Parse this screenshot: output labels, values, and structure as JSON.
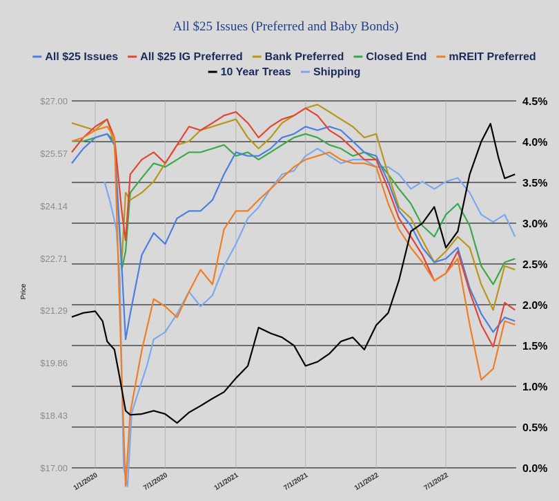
{
  "chart_data": {
    "type": "line",
    "title": "All $25 Issues (Preferred and Baby Bonds)",
    "ylabel": "Price",
    "y2label": "",
    "ylim": [
      17.0,
      27.0
    ],
    "y2lim": [
      0.0,
      4.5
    ],
    "yticks": [
      "$27.00",
      "$25.57",
      "$24.14",
      "$22.71",
      "$21.29",
      "$19.86",
      "$18.43",
      "$17.00"
    ],
    "y2ticks": [
      "4.5%",
      "4.0%",
      "3.5%",
      "3.0%",
      "2.5%",
      "2.0%",
      "1.5%",
      "1.0%",
      "0.5%",
      "0.0%"
    ],
    "xticks": [
      "1/1/2020",
      "7/1/2020",
      "1/1/2021",
      "7/1/2021",
      "1/1/2022",
      "7/1/2022"
    ],
    "legend_position": "top",
    "grid": "horizontal at right-axis ticks; vertical at date ticks",
    "series": [
      {
        "name": "All $25 Issues",
        "color": "#4a7fe0",
        "axis": "left",
        "x": [
          "2019-11-01",
          "2019-12-01",
          "2020-01-01",
          "2020-02-01",
          "2020-02-20",
          "2020-03-10",
          "2020-03-20",
          "2020-04-01",
          "2020-05-01",
          "2020-06-01",
          "2020-07-01",
          "2020-08-01",
          "2020-09-01",
          "2020-10-01",
          "2020-11-01",
          "2020-12-01",
          "2021-01-01",
          "2021-02-01",
          "2021-03-01",
          "2021-04-01",
          "2021-05-01",
          "2021-06-01",
          "2021-07-01",
          "2021-08-01",
          "2021-09-01",
          "2021-10-01",
          "2021-11-01",
          "2021-12-01",
          "2022-01-01",
          "2022-02-01",
          "2022-03-01",
          "2022-04-01",
          "2022-05-01",
          "2022-06-01",
          "2022-07-01",
          "2022-08-01",
          "2022-09-01",
          "2022-10-01",
          "2022-11-01",
          "2022-12-01",
          "2022-12-28"
        ],
        "y": [
          25.3,
          25.7,
          26.0,
          26.1,
          25.8,
          22.5,
          20.5,
          21.2,
          22.8,
          23.4,
          23.1,
          23.8,
          24.0,
          24.0,
          24.3,
          25.0,
          25.6,
          25.5,
          25.5,
          25.7,
          26.0,
          26.1,
          26.3,
          26.2,
          26.3,
          26.2,
          25.9,
          25.6,
          25.5,
          24.8,
          24.0,
          23.6,
          23.0,
          22.6,
          22.7,
          23.0,
          21.9,
          21.2,
          20.7,
          21.1,
          21.0
        ]
      },
      {
        "name": "All $25 IG Preferred",
        "color": "#e04535",
        "axis": "left",
        "x": [
          "2019-11-01",
          "2019-12-01",
          "2020-01-01",
          "2020-02-01",
          "2020-02-20",
          "2020-03-10",
          "2020-03-20",
          "2020-04-01",
          "2020-05-01",
          "2020-06-01",
          "2020-07-01",
          "2020-08-01",
          "2020-09-01",
          "2020-10-01",
          "2020-11-01",
          "2020-12-01",
          "2021-01-01",
          "2021-02-01",
          "2021-03-01",
          "2021-04-01",
          "2021-05-01",
          "2021-06-01",
          "2021-07-01",
          "2021-08-01",
          "2021-09-01",
          "2021-10-01",
          "2021-11-01",
          "2021-12-01",
          "2022-01-01",
          "2022-02-01",
          "2022-03-01",
          "2022-04-01",
          "2022-05-01",
          "2022-06-01",
          "2022-07-01",
          "2022-08-01",
          "2022-09-01",
          "2022-10-01",
          "2022-11-01",
          "2022-12-01",
          "2022-12-28"
        ],
        "y": [
          25.6,
          26.0,
          26.3,
          26.5,
          26.0,
          24.0,
          23.2,
          25.0,
          25.4,
          25.6,
          25.3,
          25.8,
          26.3,
          26.2,
          26.4,
          26.6,
          26.7,
          26.4,
          26.0,
          26.3,
          26.5,
          26.6,
          26.8,
          26.6,
          26.2,
          26.0,
          25.7,
          25.4,
          25.4,
          24.6,
          23.8,
          23.3,
          22.8,
          22.1,
          22.3,
          22.9,
          21.8,
          20.9,
          20.3,
          21.5,
          21.3
        ]
      },
      {
        "name": "Bank Preferred",
        "color": "#b8961a",
        "axis": "left",
        "x": [
          "2019-11-01",
          "2019-12-01",
          "2020-01-01",
          "2020-02-01",
          "2020-02-20",
          "2020-03-10",
          "2020-03-20",
          "2020-04-01",
          "2020-05-01",
          "2020-06-01",
          "2020-07-01",
          "2020-08-01",
          "2020-09-01",
          "2020-10-01",
          "2020-11-01",
          "2020-12-01",
          "2021-01-01",
          "2021-02-01",
          "2021-03-01",
          "2021-04-01",
          "2021-05-01",
          "2021-06-01",
          "2021-07-01",
          "2021-08-01",
          "2021-09-01",
          "2021-10-01",
          "2021-11-01",
          "2021-12-01",
          "2022-01-01",
          "2022-02-01",
          "2022-03-01",
          "2022-04-01",
          "2022-05-01",
          "2022-06-01",
          "2022-07-01",
          "2022-08-01",
          "2022-09-01",
          "2022-10-01",
          "2022-11-01",
          "2022-12-01",
          "2022-12-28"
        ],
        "y": [
          26.4,
          26.3,
          26.2,
          26.5,
          25.8,
          22.6,
          24.5,
          24.3,
          24.5,
          24.8,
          25.3,
          25.8,
          25.9,
          26.2,
          26.3,
          26.4,
          26.5,
          26.0,
          25.7,
          26.0,
          26.4,
          26.6,
          26.8,
          26.9,
          26.7,
          26.5,
          26.3,
          26.0,
          26.1,
          25.0,
          24.1,
          23.8,
          23.2,
          22.6,
          22.9,
          23.3,
          23.0,
          22.0,
          21.3,
          22.5,
          22.4
        ]
      },
      {
        "name": "Closed End",
        "color": "#3aa84a",
        "axis": "left",
        "x": [
          "2019-11-01",
          "2019-12-01",
          "2020-01-01",
          "2020-02-01",
          "2020-02-20",
          "2020-03-10",
          "2020-03-20",
          "2020-04-01",
          "2020-05-01",
          "2020-06-01",
          "2020-07-01",
          "2020-08-01",
          "2020-09-01",
          "2020-10-01",
          "2020-11-01",
          "2020-12-01",
          "2021-01-01",
          "2021-02-01",
          "2021-03-01",
          "2021-04-01",
          "2021-05-01",
          "2021-06-01",
          "2021-07-01",
          "2021-08-01",
          "2021-09-01",
          "2021-10-01",
          "2021-11-01",
          "2021-12-01",
          "2022-01-01",
          "2022-02-01",
          "2022-03-01",
          "2022-04-01",
          "2022-05-01",
          "2022-06-01",
          "2022-07-01",
          "2022-08-01",
          "2022-09-01",
          "2022-10-01",
          "2022-11-01",
          "2022-12-01",
          "2022-12-28"
        ],
        "y": [
          25.9,
          25.9,
          26.0,
          26.1,
          25.9,
          22.4,
          22.9,
          24.5,
          24.9,
          25.3,
          25.2,
          25.4,
          25.6,
          25.6,
          25.7,
          25.8,
          25.5,
          25.6,
          25.4,
          25.6,
          25.8,
          26.0,
          26.1,
          26.0,
          25.8,
          25.7,
          25.5,
          25.6,
          25.4,
          25.0,
          24.6,
          24.2,
          23.6,
          23.3,
          23.9,
          24.2,
          23.6,
          22.5,
          22.0,
          22.6,
          22.7
        ]
      },
      {
        "name": "mREIT Preferred",
        "color": "#f07d22",
        "axis": "left",
        "x": [
          "2019-11-01",
          "2019-12-01",
          "2020-01-01",
          "2020-02-01",
          "2020-02-20",
          "2020-03-10",
          "2020-03-20",
          "2020-04-01",
          "2020-05-01",
          "2020-06-01",
          "2020-07-01",
          "2020-08-01",
          "2020-09-01",
          "2020-10-01",
          "2020-11-01",
          "2020-12-01",
          "2021-01-01",
          "2021-02-01",
          "2021-03-01",
          "2021-04-01",
          "2021-05-01",
          "2021-06-01",
          "2021-07-01",
          "2021-08-01",
          "2021-09-01",
          "2021-10-01",
          "2021-11-01",
          "2021-12-01",
          "2022-01-01",
          "2022-02-01",
          "2022-03-01",
          "2022-04-01",
          "2022-05-01",
          "2022-06-01",
          "2022-07-01",
          "2022-08-01",
          "2022-09-01",
          "2022-10-01",
          "2022-11-01",
          "2022-12-01",
          "2022-12-28"
        ],
        "y": [
          25.9,
          26.0,
          26.2,
          26.3,
          26.0,
          19.5,
          16.5,
          18.5,
          20.2,
          21.6,
          21.4,
          21.1,
          21.8,
          22.4,
          22.0,
          23.5,
          24.0,
          24.0,
          24.3,
          24.6,
          24.9,
          25.2,
          25.4,
          25.5,
          25.6,
          25.4,
          25.3,
          25.3,
          25.2,
          24.2,
          23.5,
          23.0,
          22.6,
          22.1,
          22.3,
          22.7,
          20.9,
          19.4,
          19.7,
          21.0,
          20.9
        ]
      },
      {
        "name": "10 Year Treas",
        "color": "#000000",
        "axis": "right",
        "x": [
          "2019-11-01",
          "2019-12-01",
          "2020-01-01",
          "2020-01-20",
          "2020-02-01",
          "2020-02-20",
          "2020-03-05",
          "2020-03-20",
          "2020-04-01",
          "2020-05-01",
          "2020-06-01",
          "2020-07-01",
          "2020-08-01",
          "2020-09-01",
          "2020-10-01",
          "2020-11-01",
          "2020-12-01",
          "2021-01-01",
          "2021-02-01",
          "2021-03-01",
          "2021-04-01",
          "2021-05-01",
          "2021-06-01",
          "2021-07-01",
          "2021-08-01",
          "2021-09-01",
          "2021-10-01",
          "2021-11-01",
          "2021-12-01",
          "2022-01-01",
          "2022-02-01",
          "2022-03-01",
          "2022-04-01",
          "2022-05-01",
          "2022-06-01",
          "2022-07-01",
          "2022-08-01",
          "2022-09-01",
          "2022-10-01",
          "2022-10-25",
          "2022-11-15",
          "2022-12-01",
          "2022-12-28"
        ],
        "y": [
          1.85,
          1.9,
          1.92,
          1.8,
          1.55,
          1.45,
          1.1,
          0.7,
          0.65,
          0.66,
          0.7,
          0.66,
          0.55,
          0.68,
          0.76,
          0.85,
          0.93,
          1.1,
          1.25,
          1.72,
          1.65,
          1.6,
          1.5,
          1.25,
          1.3,
          1.4,
          1.55,
          1.6,
          1.45,
          1.75,
          1.9,
          2.3,
          2.9,
          3.0,
          3.2,
          2.7,
          2.9,
          3.6,
          4.0,
          4.22,
          3.8,
          3.55,
          3.6
        ]
      },
      {
        "name": "Shipping",
        "color": "#7ba8f0",
        "axis": "left",
        "x": [
          "2020-01-25",
          "2020-02-10",
          "2020-02-25",
          "2020-03-05",
          "2020-03-15",
          "2020-03-25",
          "2020-04-05",
          "2020-04-20",
          "2020-05-15",
          "2020-06-01",
          "2020-07-01",
          "2020-08-01",
          "2020-09-01",
          "2020-10-01",
          "2020-11-01",
          "2020-12-01",
          "2021-01-01",
          "2021-02-01",
          "2021-03-01",
          "2021-04-01",
          "2021-05-01",
          "2021-06-01",
          "2021-07-01",
          "2021-08-01",
          "2021-09-01",
          "2021-10-01",
          "2021-11-01",
          "2021-12-01",
          "2022-01-01",
          "2022-02-01",
          "2022-03-01",
          "2022-04-01",
          "2022-05-01",
          "2022-06-01",
          "2022-07-01",
          "2022-08-01",
          "2022-09-01",
          "2022-10-01",
          "2022-11-01",
          "2022-12-01",
          "2022-12-28"
        ],
        "y": [
          24.8,
          24.2,
          23.5,
          22.2,
          17.0,
          16.5,
          18.5,
          19.0,
          19.8,
          20.5,
          20.7,
          21.2,
          21.8,
          21.4,
          21.7,
          22.5,
          23.1,
          23.8,
          24.1,
          24.6,
          25.0,
          25.1,
          25.5,
          25.7,
          25.5,
          25.3,
          25.4,
          25.4,
          25.2,
          25.2,
          25.0,
          24.6,
          24.8,
          24.6,
          24.8,
          24.9,
          24.5,
          23.9,
          23.7,
          23.9,
          23.3
        ]
      }
    ]
  }
}
